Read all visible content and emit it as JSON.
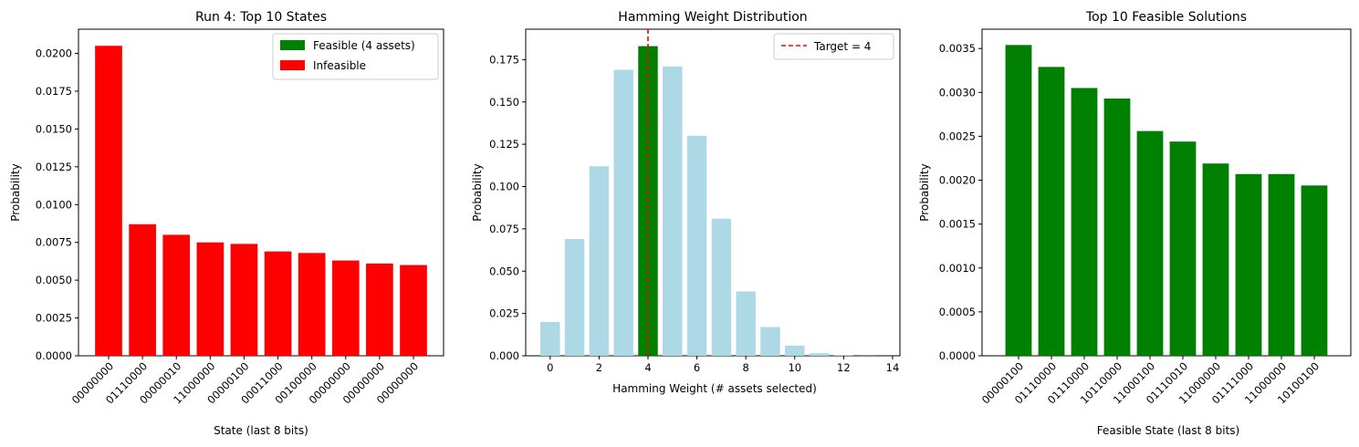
{
  "chart_data": [
    {
      "type": "bar",
      "title": "Run 4: Top 10 States",
      "xlabel": "State (last 8 bits)",
      "ylabel": "Probability",
      "ylim": [
        0,
        0.0216
      ],
      "yticks": [
        "0.0000",
        "0.0025",
        "0.0050",
        "0.0075",
        "0.0100",
        "0.0125",
        "0.0150",
        "0.0175",
        "0.0200"
      ],
      "categories": [
        "00000000",
        "01110000",
        "00000010",
        "11000000",
        "00000100",
        "00011000",
        "00100000",
        "00000000",
        "00000000",
        "00000000"
      ],
      "values": [
        0.0205,
        0.0087,
        0.008,
        0.0075,
        0.0074,
        0.0069,
        0.0068,
        0.0063,
        0.0061,
        0.006
      ],
      "bar_color": "#ff0000",
      "legend": {
        "placement": "top-right",
        "entries": [
          {
            "label": "Feasible (4 assets)",
            "color": "#008000"
          },
          {
            "label": "Infeasible",
            "color": "#ff0000"
          }
        ]
      }
    },
    {
      "type": "bar",
      "title": "Hamming Weight Distribution",
      "xlabel": "Hamming Weight (# assets selected)",
      "ylabel": "Probability",
      "xlim": [
        -1,
        14.3
      ],
      "ylim": [
        0,
        0.193
      ],
      "xticks": [
        "0",
        "2",
        "4",
        "6",
        "8",
        "10",
        "12",
        "14"
      ],
      "yticks": [
        "0.000",
        "0.025",
        "0.050",
        "0.075",
        "0.100",
        "0.125",
        "0.150",
        "0.175"
      ],
      "x": [
        0,
        1,
        2,
        3,
        4,
        5,
        6,
        7,
        8,
        9,
        10,
        11,
        12,
        13
      ],
      "values": [
        0.02,
        0.069,
        0.112,
        0.169,
        0.183,
        0.171,
        0.13,
        0.081,
        0.038,
        0.017,
        0.006,
        0.0015,
        0.0002,
        5e-05
      ],
      "bar_color": "#add8e6",
      "highlight": {
        "x": 4,
        "color": "#008000"
      },
      "target_line": {
        "x": 4,
        "color": "#ff0000",
        "style": "dashed"
      },
      "legend": {
        "placement": "top-right",
        "entries": [
          {
            "label": "Target = 4",
            "color": "#ff0000"
          }
        ]
      }
    },
    {
      "type": "bar",
      "title": "Top 10 Feasible Solutions",
      "xlabel": "Feasible State (last 8 bits)",
      "ylabel": "Probability",
      "ylim": [
        0,
        0.00372
      ],
      "yticks": [
        "0.0000",
        "0.0005",
        "0.0010",
        "0.0015",
        "0.0020",
        "0.0025",
        "0.0030",
        "0.0035"
      ],
      "categories": [
        "00000100",
        "01110000",
        "01110000",
        "10110000",
        "11000100",
        "01110010",
        "11000000",
        "01111000",
        "11000000",
        "10100100"
      ],
      "values": [
        0.00354,
        0.00329,
        0.00305,
        0.00293,
        0.00256,
        0.00244,
        0.00219,
        0.00207,
        0.00207,
        0.00194
      ],
      "bar_color": "#008000"
    }
  ]
}
